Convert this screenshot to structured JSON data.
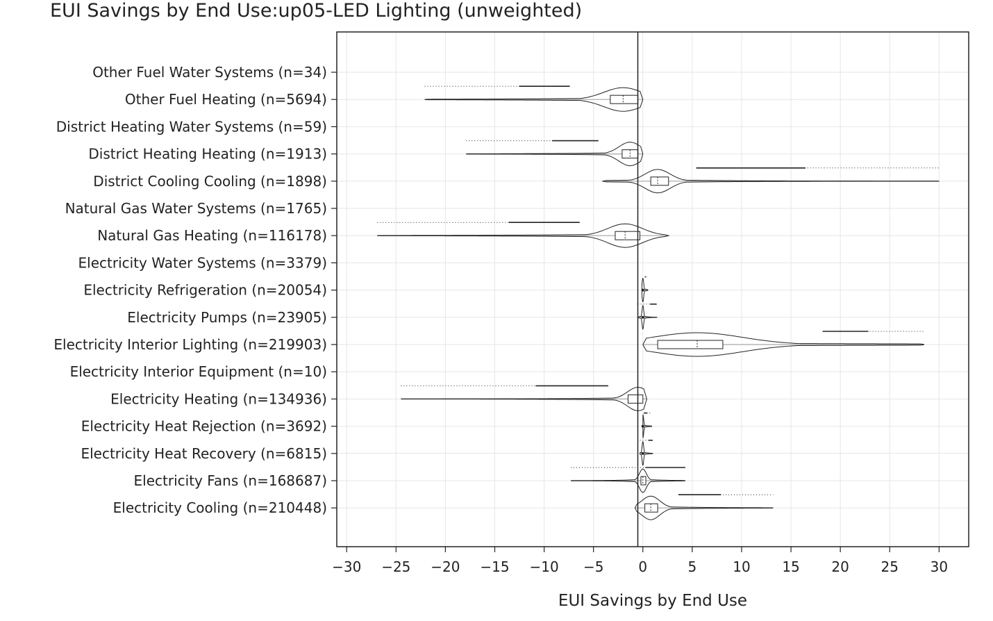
{
  "chart_data": {
    "type": "violin",
    "title": "EUI Savings by End Use:up05-LED Lighting (unweighted)",
    "xlabel": "EUI Savings by End Use",
    "xlim": [
      -31,
      33
    ],
    "xticks": [
      -30,
      -25,
      -20,
      -15,
      -10,
      -5,
      0,
      5,
      10,
      15,
      20,
      25,
      30
    ],
    "grid": true,
    "categories": [
      "Other Fuel Water Systems  (n=34)",
      "Other Fuel Heating  (n=5694)",
      "District Heating Water Systems  (n=59)",
      "District Heating Heating  (n=1913)",
      "District Cooling Cooling  (n=1898)",
      "Natural Gas Water Systems  (n=1765)",
      "Natural Gas Heating  (n=116178)",
      "Electricity Water Systems  (n=3379)",
      "Electricity Refrigeration  (n=20054)",
      "Electricity Pumps  (n=23905)",
      "Electricity Interior Lighting  (n=219903)",
      "Electricity Interior Equipment  (n=10)",
      "Electricity Heating  (n=134936)",
      "Electricity Heat Rejection  (n=3692)",
      "Electricity Heat Recovery  (n=6815)",
      "Electricity Fans  (n=168687)",
      "Electricity Cooling  (n=210448)"
    ],
    "series": [
      {
        "min": 0,
        "q1": 0,
        "median": 0,
        "q3": 0,
        "max": 0,
        "outlier_range": null
      },
      {
        "min": -22.1,
        "q1": -3.3,
        "median": -2.0,
        "q3": -0.5,
        "max": 0,
        "outlier_range": [
          -22.1,
          -7.4
        ]
      },
      {
        "min": 0,
        "q1": 0,
        "median": 0,
        "q3": 0,
        "max": 0,
        "outlier_range": null
      },
      {
        "min": -17.9,
        "q1": -2.1,
        "median": -1.3,
        "q3": -0.5,
        "max": 0,
        "outlier_range": [
          -17.9,
          -4.5
        ]
      },
      {
        "min": -4.1,
        "q1": 0.8,
        "median": 1.5,
        "q3": 2.6,
        "max": 30.0,
        "outlier_range": [
          5.4,
          30.0
        ]
      },
      {
        "min": 0,
        "q1": 0,
        "median": 0,
        "q3": 0,
        "max": 0,
        "outlier_range": null
      },
      {
        "min": -26.9,
        "q1": -2.8,
        "median": -1.8,
        "q3": -0.3,
        "max": 2.6,
        "outlier_range": [
          -26.9,
          -6.4
        ]
      },
      {
        "min": 0,
        "q1": 0,
        "median": 0,
        "q3": 0,
        "max": 0,
        "outlier_range": null
      },
      {
        "min": -0.1,
        "q1": 0,
        "median": 0,
        "q3": 0.1,
        "max": 0.5,
        "outlier_range": [
          0.2,
          0.5
        ]
      },
      {
        "min": -0.5,
        "q1": 0,
        "median": 0,
        "q3": 0.1,
        "max": 1.4,
        "outlier_range": [
          -0.5,
          1.4
        ]
      },
      {
        "min": 0,
        "q1": 1.5,
        "median": 5.5,
        "q3": 8.1,
        "max": 28.5,
        "outlier_range": [
          18.2,
          28.5
        ]
      },
      {
        "min": 0,
        "q1": 0,
        "median": 0,
        "q3": 0,
        "max": 0,
        "outlier_range": null
      },
      {
        "min": -24.5,
        "q1": -1.5,
        "median": -0.5,
        "q3": 0,
        "max": 0.4,
        "outlier_range": [
          -24.5,
          -3.5
        ]
      },
      {
        "min": 0,
        "q1": 0,
        "median": 0,
        "q3": 0.05,
        "max": 0.9,
        "outlier_range": [
          0.1,
          0.9
        ]
      },
      {
        "min": -0.3,
        "q1": 0,
        "median": 0,
        "q3": 0.05,
        "max": 1.0,
        "outlier_range": [
          -0.3,
          1.0
        ]
      },
      {
        "min": -7.3,
        "q1": -0.2,
        "median": 0,
        "q3": 0.3,
        "max": 4.3,
        "outlier_range": [
          -7.3,
          4.3
        ]
      },
      {
        "min": -0.8,
        "q1": 0.2,
        "median": 0.8,
        "q3": 1.5,
        "max": 13.2,
        "outlier_range": [
          3.6,
          13.2
        ]
      }
    ]
  }
}
